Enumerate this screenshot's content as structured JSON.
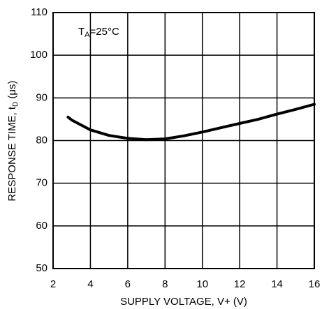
{
  "chart_data": {
    "type": "line",
    "annotation": {
      "symbol": "T",
      "subscript": "A",
      "text": "=25°C"
    },
    "y_label": {
      "before": "RESPONSE TIME, t",
      "subscript": "D",
      "after": " (μs)"
    },
    "x_label": "SUPPLY VOLTAGE, V+ (V)",
    "x": [
      2.8,
      3,
      4,
      5,
      6,
      7,
      8,
      9,
      10,
      11,
      12,
      13,
      14,
      15,
      16
    ],
    "values": [
      85.5,
      84.8,
      82.5,
      81.2,
      80.5,
      80.2,
      80.4,
      81.1,
      82,
      83,
      84,
      85,
      86.2,
      87.3,
      88.5
    ],
    "color": "#000000",
    "xlim": [
      2,
      16
    ],
    "xticks": [
      2,
      4,
      6,
      8,
      10,
      12,
      14,
      16
    ],
    "ylim": [
      50,
      110
    ],
    "yticks": [
      50,
      60,
      70,
      80,
      90,
      100,
      110
    ],
    "grid": true
  }
}
